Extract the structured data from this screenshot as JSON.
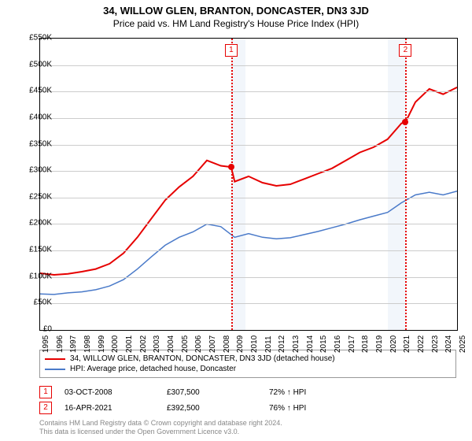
{
  "title": "34, WILLOW GLEN, BRANTON, DONCASTER, DN3 3JD",
  "subtitle": "Price paid vs. HM Land Registry's House Price Index (HPI)",
  "chart": {
    "type": "line",
    "ylim": [
      0,
      550000
    ],
    "ytick_step": 50000,
    "ytick_labels": [
      "£0",
      "£50K",
      "£100K",
      "£150K",
      "£200K",
      "£250K",
      "£300K",
      "£350K",
      "£400K",
      "£450K",
      "£500K",
      "£550K"
    ],
    "x_years": [
      "1995",
      "1996",
      "1997",
      "1998",
      "1999",
      "2000",
      "2001",
      "2002",
      "2003",
      "2004",
      "2005",
      "2006",
      "2007",
      "2008",
      "2009",
      "2010",
      "2011",
      "2012",
      "2013",
      "2014",
      "2015",
      "2016",
      "2017",
      "2018",
      "2019",
      "2020",
      "2021",
      "2022",
      "2023",
      "2024",
      "2025"
    ],
    "background_color": "#ffffff",
    "grid_color": "#cccccc",
    "shade_color": "#4a7ac9",
    "shade_opacity": 0.07,
    "shade_ranges": [
      [
        2008.75,
        2009.75
      ],
      [
        2020.0,
        2021.3
      ]
    ],
    "series": [
      {
        "name": "price",
        "color": "#e60000",
        "width": 2,
        "points": [
          [
            1995,
            107000
          ],
          [
            1996,
            104000
          ],
          [
            1997,
            106000
          ],
          [
            1998,
            110000
          ],
          [
            1999,
            115000
          ],
          [
            2000,
            125000
          ],
          [
            2001,
            145000
          ],
          [
            2002,
            175000
          ],
          [
            2003,
            210000
          ],
          [
            2004,
            245000
          ],
          [
            2005,
            270000
          ],
          [
            2006,
            290000
          ],
          [
            2007,
            320000
          ],
          [
            2008,
            310000
          ],
          [
            2008.75,
            307500
          ],
          [
            2009,
            280000
          ],
          [
            2010,
            290000
          ],
          [
            2011,
            278000
          ],
          [
            2012,
            272000
          ],
          [
            2013,
            275000
          ],
          [
            2014,
            285000
          ],
          [
            2015,
            295000
          ],
          [
            2016,
            305000
          ],
          [
            2017,
            320000
          ],
          [
            2018,
            335000
          ],
          [
            2019,
            345000
          ],
          [
            2020,
            360000
          ],
          [
            2021,
            390000
          ],
          [
            2021.29,
            392500
          ],
          [
            2022,
            430000
          ],
          [
            2023,
            455000
          ],
          [
            2024,
            445000
          ],
          [
            2025,
            458000
          ]
        ]
      },
      {
        "name": "hpi",
        "color": "#4a7ac9",
        "width": 1.5,
        "points": [
          [
            1995,
            68000
          ],
          [
            1996,
            67000
          ],
          [
            1997,
            70000
          ],
          [
            1998,
            72000
          ],
          [
            1999,
            76000
          ],
          [
            2000,
            83000
          ],
          [
            2001,
            95000
          ],
          [
            2002,
            115000
          ],
          [
            2003,
            138000
          ],
          [
            2004,
            160000
          ],
          [
            2005,
            175000
          ],
          [
            2006,
            185000
          ],
          [
            2007,
            200000
          ],
          [
            2008,
            195000
          ],
          [
            2009,
            175000
          ],
          [
            2010,
            182000
          ],
          [
            2011,
            175000
          ],
          [
            2012,
            172000
          ],
          [
            2013,
            174000
          ],
          [
            2014,
            180000
          ],
          [
            2015,
            186000
          ],
          [
            2016,
            193000
          ],
          [
            2017,
            200000
          ],
          [
            2018,
            208000
          ],
          [
            2019,
            215000
          ],
          [
            2020,
            222000
          ],
          [
            2021,
            240000
          ],
          [
            2022,
            255000
          ],
          [
            2023,
            260000
          ],
          [
            2024,
            255000
          ],
          [
            2025,
            262000
          ]
        ]
      }
    ],
    "markers": [
      {
        "n": "1",
        "x": 2008.75,
        "y": 307500,
        "label_y": 540000
      },
      {
        "n": "2",
        "x": 2021.29,
        "y": 392500,
        "label_y": 540000
      }
    ]
  },
  "legend": {
    "s1": {
      "label": "34, WILLOW GLEN, BRANTON, DONCASTER, DN3 3JD (detached house)",
      "color": "#e60000"
    },
    "s2": {
      "label": "HPI: Average price, detached house, Doncaster",
      "color": "#4a7ac9"
    }
  },
  "sales": [
    {
      "n": "1",
      "date": "03-OCT-2008",
      "price": "£307,500",
      "pct": "72% ↑ HPI"
    },
    {
      "n": "2",
      "date": "16-APR-2021",
      "price": "£392,500",
      "pct": "76% ↑ HPI"
    }
  ],
  "footer": {
    "l1": "Contains HM Land Registry data © Crown copyright and database right 2024.",
    "l2": "This data is licensed under the Open Government Licence v3.0."
  }
}
